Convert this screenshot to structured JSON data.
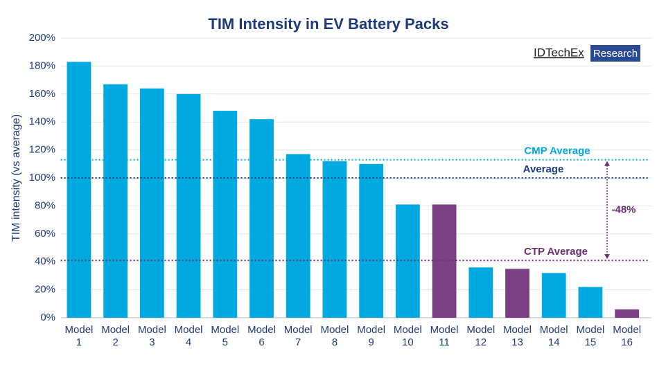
{
  "chart_data": {
    "type": "bar",
    "title": "TIM Intensity in EV Battery Packs",
    "y_label": "TIM intensity (vs average)",
    "categories": [
      "Model 1",
      "Model 2",
      "Model 3",
      "Model 4",
      "Model 5",
      "Model 6",
      "Model 7",
      "Model 8",
      "Model 9",
      "Model 10",
      "Model 11",
      "Model 12",
      "Model 13",
      "Model 14",
      "Model 15",
      "Model 16"
    ],
    "values": [
      183,
      167,
      164,
      160,
      148,
      142,
      117,
      112,
      110,
      81,
      81,
      36,
      35,
      32,
      22,
      6
    ],
    "colors": [
      "#00a9e0",
      "#00a9e0",
      "#00a9e0",
      "#00a9e0",
      "#00a9e0",
      "#00a9e0",
      "#00a9e0",
      "#00a9e0",
      "#00a9e0",
      "#00a9e0",
      "#7b3f84",
      "#00a9e0",
      "#7b3f84",
      "#00a9e0",
      "#00a9e0",
      "#7b3f84"
    ],
    "ylim": [
      0,
      200
    ],
    "yticks": [
      {
        "value": 0,
        "label": "0%"
      },
      {
        "value": 20,
        "label": "20%"
      },
      {
        "value": 40,
        "label": "40%"
      },
      {
        "value": 60,
        "label": "60%"
      },
      {
        "value": 80,
        "label": "80%"
      },
      {
        "value": 100,
        "label": "100%"
      },
      {
        "value": 120,
        "label": "120%"
      },
      {
        "value": 140,
        "label": "140%"
      },
      {
        "value": 160,
        "label": "160%"
      },
      {
        "value": 180,
        "label": "180%"
      },
      {
        "value": 200,
        "label": "200%"
      }
    ],
    "grid": true,
    "reference_lines": [
      {
        "label": "CMP Average",
        "value": 113,
        "color": "#00a9e0"
      },
      {
        "label": "Average",
        "value": 100,
        "color": "#1f3a7a"
      },
      {
        "label": "CTP Average",
        "value": 41,
        "color": "#6b2f74"
      }
    ],
    "annotation": "-48%",
    "logo": {
      "name": "IDTechEx",
      "tag": "Research"
    }
  }
}
